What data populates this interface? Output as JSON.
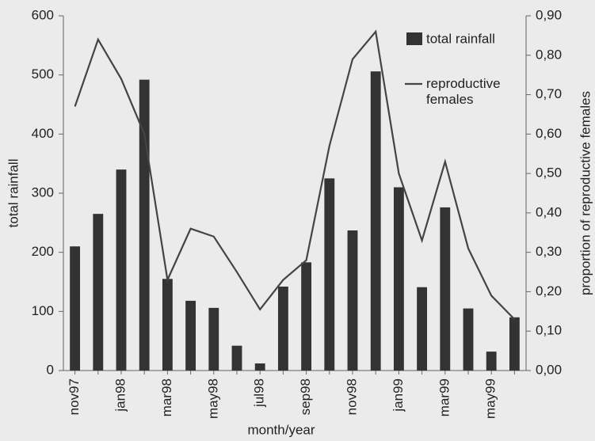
{
  "chart_data": {
    "type": "bar_line",
    "x_label": "month/year",
    "y_label": "total rainfall",
    "y2_label": "proportion of reproductive females",
    "categories": [
      "nov97",
      null,
      "jan98",
      null,
      "mar98",
      null,
      "may98",
      null,
      "jul98",
      null,
      "sep98",
      null,
      "nov98",
      null,
      "jan99",
      null,
      "mar99",
      null,
      "may99",
      null
    ],
    "series": [
      {
        "name": "total rainfall",
        "type": "bar",
        "color": "#333333",
        "values": [
          210,
          265,
          340,
          492,
          155,
          118,
          106,
          42,
          12,
          142,
          183,
          325,
          237,
          506,
          310,
          141,
          276,
          105,
          32,
          90
        ]
      },
      {
        "name": "reproductive females",
        "type": "line",
        "axis": "y2",
        "color": "#444444",
        "values": [
          0.67,
          0.84,
          0.74,
          0.6,
          0.23,
          0.36,
          0.34,
          0.25,
          0.155,
          0.23,
          0.28,
          0.57,
          0.79,
          0.86,
          0.5,
          0.33,
          0.53,
          0.31,
          0.19,
          0.13
        ]
      }
    ],
    "ylim": [
      0,
      600
    ],
    "yticks": [
      0,
      100,
      200,
      300,
      400,
      500,
      600
    ],
    "y2lim": [
      0,
      0.9
    ],
    "y2ticks": [
      {
        "value": 0,
        "label": "0,00"
      },
      {
        "value": 0.1,
        "label": "0,10"
      },
      {
        "value": 0.2,
        "label": "0,20"
      },
      {
        "value": 0.3,
        "label": "0,30"
      },
      {
        "value": 0.4,
        "label": "0,40"
      },
      {
        "value": 0.5,
        "label": "0,50"
      },
      {
        "value": 0.6,
        "label": "0,60"
      },
      {
        "value": 0.7,
        "label": "0,70"
      },
      {
        "value": 0.8,
        "label": "0,80"
      },
      {
        "value": 0.9,
        "label": "0,90"
      }
    ],
    "legend": "upper right",
    "grid": false
  }
}
